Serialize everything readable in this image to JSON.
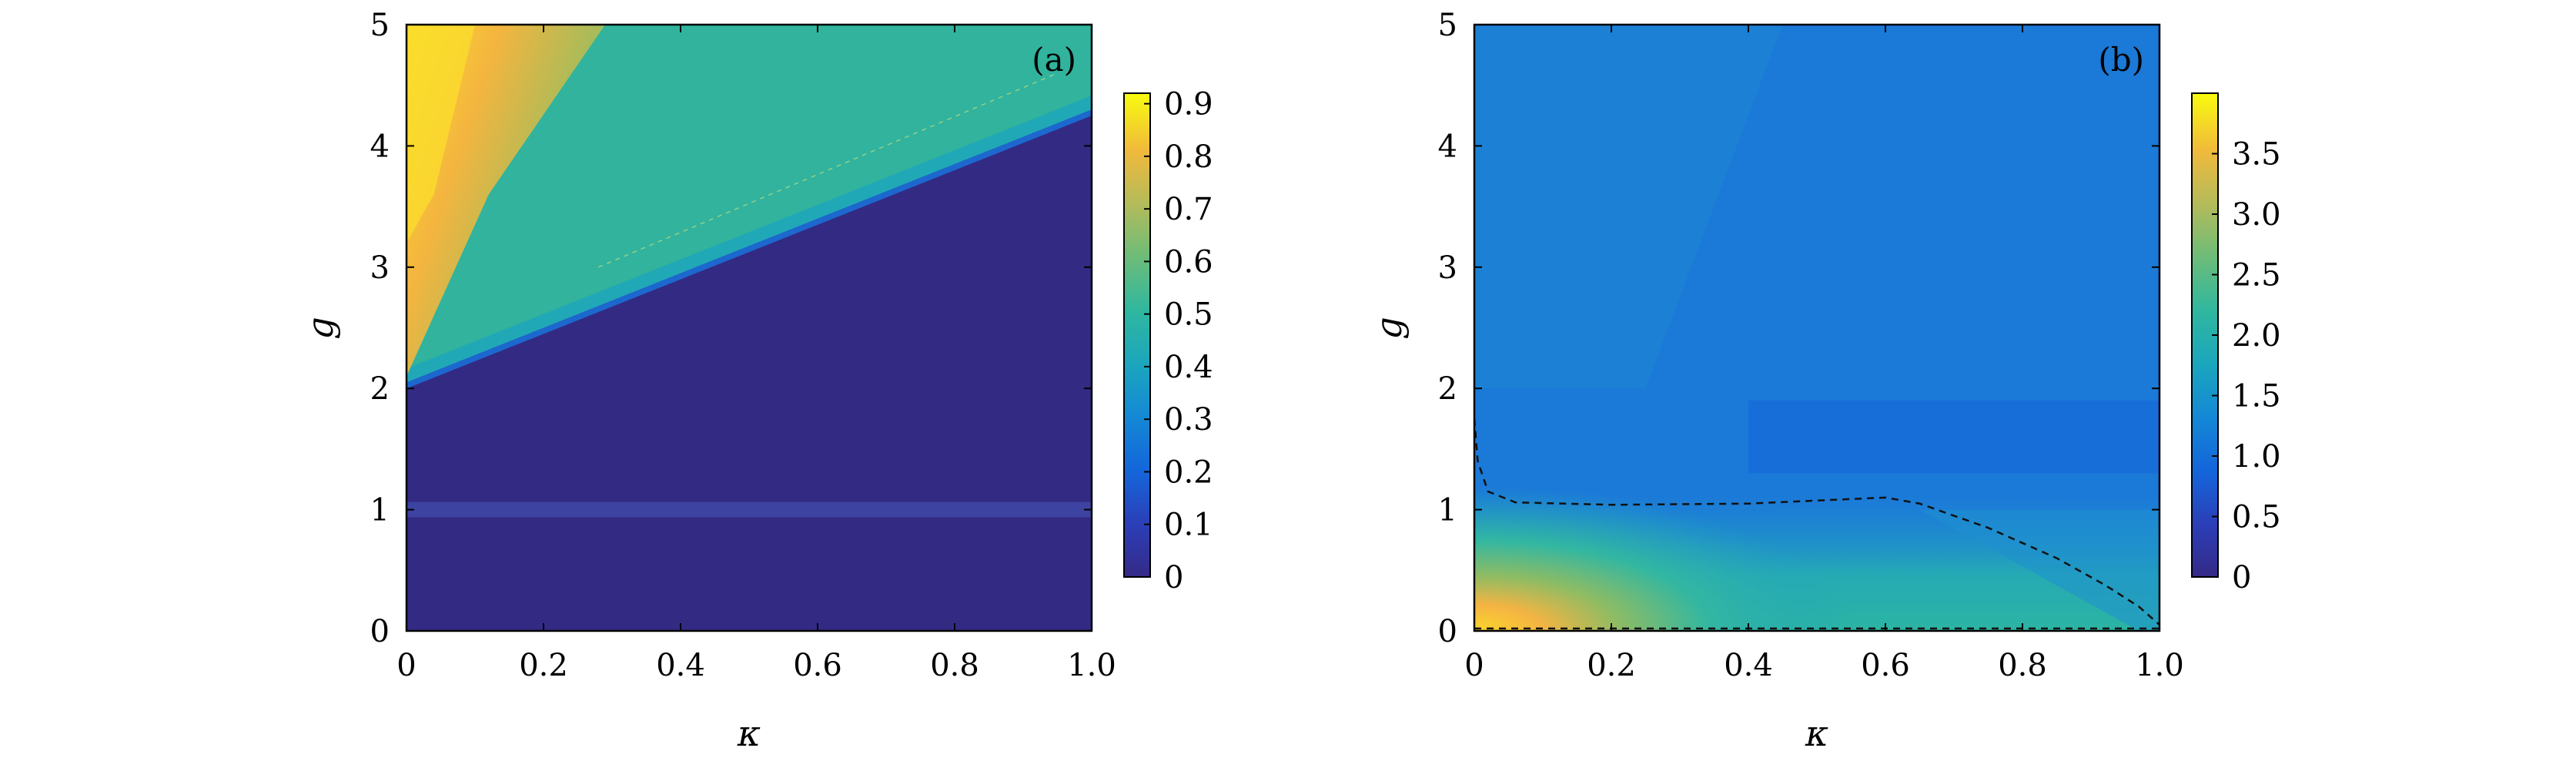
{
  "colors": {
    "low": "#342c84",
    "mid_blue": "#1a74d6",
    "cyan": "#22b1a8",
    "teal": "#2fb39d",
    "yellow": "#fbe22a",
    "orange": "#f9b53c",
    "dash": "#111111"
  },
  "chart_data": [
    {
      "type": "heatmap",
      "panel_label": "(a)",
      "xlabel": "κ",
      "ylabel": "g",
      "xlim": [
        0,
        1
      ],
      "ylim": [
        0,
        5
      ],
      "x_ticks": [
        {
          "value": 0,
          "label": "0"
        },
        {
          "value": 0.2,
          "label": "0.2"
        },
        {
          "value": 0.4,
          "label": "0.4"
        },
        {
          "value": 0.6,
          "label": "0.6"
        },
        {
          "value": 0.8,
          "label": "0.8"
        },
        {
          "value": 1.0,
          "label": "1.0"
        }
      ],
      "y_ticks": [
        {
          "value": 0,
          "label": "0"
        },
        {
          "value": 1,
          "label": "1"
        },
        {
          "value": 2,
          "label": "2"
        },
        {
          "value": 3,
          "label": "3"
        },
        {
          "value": 4,
          "label": "4"
        },
        {
          "value": 5,
          "label": "5"
        }
      ],
      "colorbar": {
        "range": [
          0,
          0.92
        ],
        "ticks": [
          {
            "value": 0,
            "label": "0"
          },
          {
            "value": 0.1,
            "label": "0.1"
          },
          {
            "value": 0.2,
            "label": "0.2"
          },
          {
            "value": 0.3,
            "label": "0.3"
          },
          {
            "value": 0.4,
            "label": "0.4"
          },
          {
            "value": 0.5,
            "label": "0.5"
          },
          {
            "value": 0.6,
            "label": "0.6"
          },
          {
            "value": 0.7,
            "label": "0.7"
          },
          {
            "value": 0.8,
            "label": "0.8"
          },
          {
            "value": 0.9,
            "label": "0.9"
          }
        ]
      },
      "regions": {
        "phase_boundary_line": {
          "g_at_kappa_0": 2.05,
          "g_at_kappa_1": 4.3
        },
        "above_boundary_value": 0.45,
        "below_boundary_value": 0.0,
        "corner_max": {
          "kappa": 0.0,
          "g": 5.0,
          "value": 0.92
        },
        "faint_band_at_g": 1.0
      }
    },
    {
      "type": "heatmap",
      "panel_label": "(b)",
      "xlabel": "κ",
      "ylabel": "g",
      "xlim": [
        0,
        1
      ],
      "ylim": [
        0,
        5
      ],
      "x_ticks": [
        {
          "value": 0,
          "label": "0"
        },
        {
          "value": 0.2,
          "label": "0.2"
        },
        {
          "value": 0.4,
          "label": "0.4"
        },
        {
          "value": 0.6,
          "label": "0.6"
        },
        {
          "value": 0.8,
          "label": "0.8"
        },
        {
          "value": 1.0,
          "label": "1.0"
        }
      ],
      "y_ticks": [
        {
          "value": 0,
          "label": "0"
        },
        {
          "value": 1,
          "label": "1"
        },
        {
          "value": 2,
          "label": "2"
        },
        {
          "value": 3,
          "label": "3"
        },
        {
          "value": 4,
          "label": "4"
        },
        {
          "value": 5,
          "label": "5"
        }
      ],
      "colorbar": {
        "range": [
          0,
          4.0
        ],
        "ticks": [
          {
            "value": 0,
            "label": "0"
          },
          {
            "value": 0.5,
            "label": "0.5"
          },
          {
            "value": 1.0,
            "label": "1.0"
          },
          {
            "value": 1.5,
            "label": "1.5"
          },
          {
            "value": 2.0,
            "label": "2.0"
          },
          {
            "value": 2.5,
            "label": "2.5"
          },
          {
            "value": 3.0,
            "label": "3.0"
          },
          {
            "value": 3.5,
            "label": "3.5"
          }
        ]
      },
      "regions": {
        "background_value": 0.75,
        "corner_max": {
          "kappa": 0.0,
          "g": 0.0,
          "value": 3.9
        },
        "dashed_boundary": [
          [
            0.0,
            1.75
          ],
          [
            0.005,
            1.4
          ],
          [
            0.02,
            1.15
          ],
          [
            0.06,
            1.06
          ],
          [
            0.2,
            1.04
          ],
          [
            0.4,
            1.05
          ],
          [
            0.6,
            1.1
          ],
          [
            0.65,
            1.05
          ],
          [
            0.75,
            0.85
          ],
          [
            0.85,
            0.6
          ],
          [
            0.92,
            0.38
          ],
          [
            0.97,
            0.2
          ],
          [
            1.0,
            0.05
          ]
        ],
        "dashed_baseline_g": 0.02
      }
    }
  ]
}
